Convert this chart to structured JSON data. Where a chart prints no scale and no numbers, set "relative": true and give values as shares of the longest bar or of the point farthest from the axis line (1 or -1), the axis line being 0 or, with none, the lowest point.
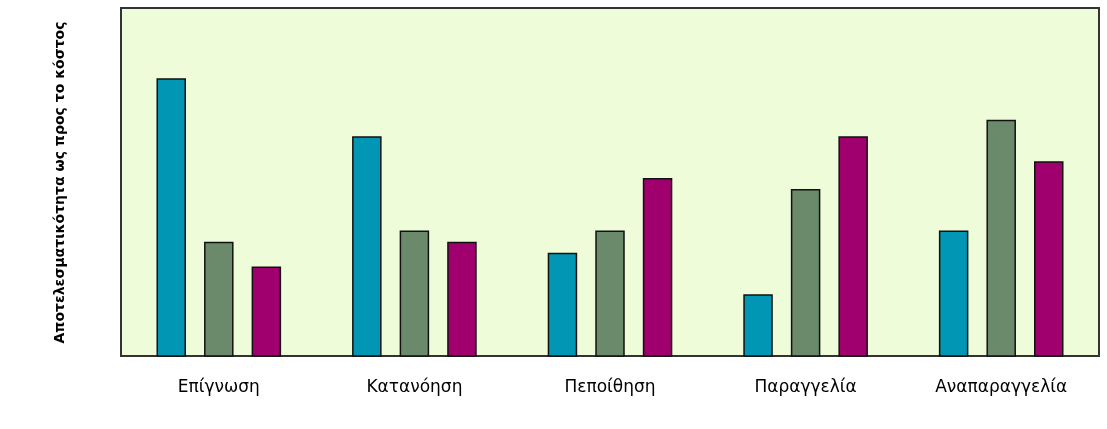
{
  "chart_data": {
    "type": "bar",
    "relative": true,
    "ylabel": "Αποτελεσματικότητα ως προς το κόστος",
    "categories": [
      "Επίγνωση",
      "Κατανόηση",
      "Πεποίθηση",
      "Παραγγελία",
      "Αναπαραγγελία"
    ],
    "series": [
      {
        "color": "#0096b4",
        "values": [
          1,
          0.79,
          0.37,
          0.22,
          0.45
        ]
      },
      {
        "color": "#6b8a6b",
        "values": [
          0.41,
          0.45,
          0.45,
          0.6,
          0.85
        ]
      },
      {
        "color": "#a0006e",
        "values": [
          0.32,
          0.41,
          0.64,
          0.79,
          0.7
        ]
      }
    ]
  }
}
